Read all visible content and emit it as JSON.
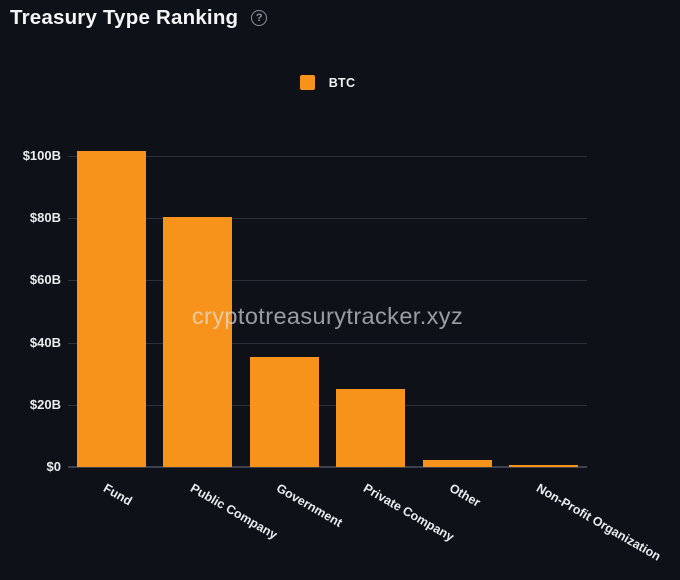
{
  "page": {
    "title": "Treasury Type Ranking",
    "help_icon": "?",
    "watermark": "cryptotreasurytracker.xyz"
  },
  "legend": {
    "items": [
      {
        "label": "BTC",
        "color": "#f7931a"
      }
    ]
  },
  "chart_data": {
    "type": "bar",
    "title": "Treasury Type Ranking",
    "series": [
      {
        "name": "BTC",
        "values": [
          101.6,
          80.3,
          35.4,
          25.0,
          2.3,
          0.6
        ]
      }
    ],
    "categories": [
      "Fund",
      "Public Company",
      "Government",
      "Private Company",
      "Other",
      "Non-Profit Organization"
    ],
    "unit": "billions of USD",
    "xlabel": "",
    "ylabel": "",
    "ylim": [
      0,
      108
    ],
    "y_ticks": [
      {
        "label": "$0",
        "value": 0
      },
      {
        "label": "$20B",
        "value": 20
      },
      {
        "label": "$40B",
        "value": 40
      },
      {
        "label": "$60B",
        "value": 60
      },
      {
        "label": "$80B",
        "value": 80
      },
      {
        "label": "$100B",
        "value": 100
      }
    ],
    "grid": "horizontal",
    "legend_position": "top-center",
    "x_tick_rotation_deg": 30,
    "bar_color": "#f7931a"
  },
  "colors": {
    "background": "#0e1118",
    "text": "#e9ebee",
    "grid": "#2b303b",
    "axis_line": "#3c414b",
    "accent": "#f7931a",
    "watermark": "rgba(226,229,234,0.66)"
  }
}
